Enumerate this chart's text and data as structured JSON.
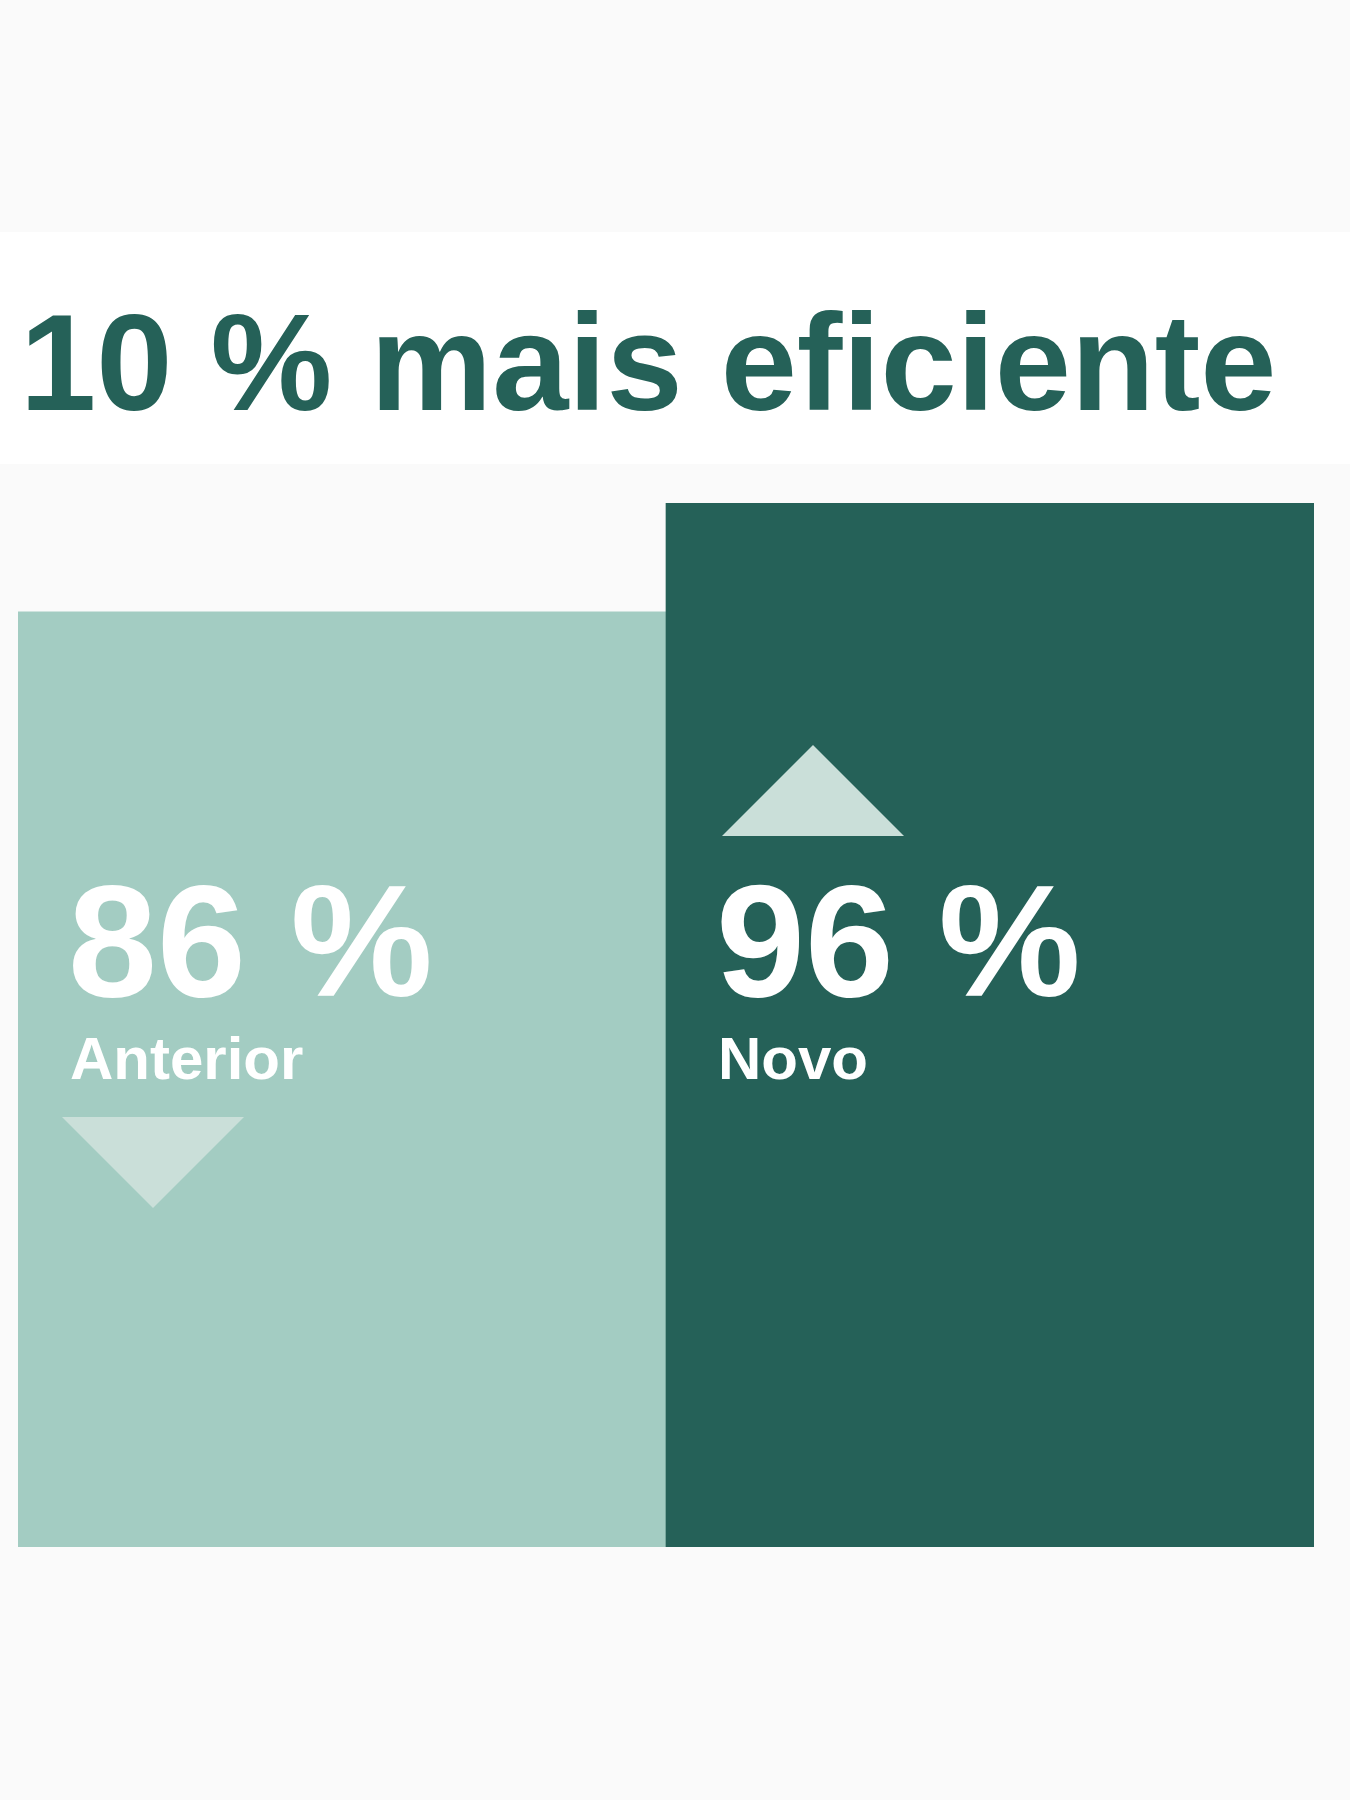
{
  "chart_data": {
    "type": "bar",
    "title": "10 % mais eficiente",
    "categories": [
      "Anterior",
      "Novo"
    ],
    "values": [
      86,
      96
    ],
    "colors": [
      "#a3ccc2",
      "#256158"
    ],
    "value_labels": [
      "86 %",
      "96 %"
    ],
    "tick_labels": false
  }
}
